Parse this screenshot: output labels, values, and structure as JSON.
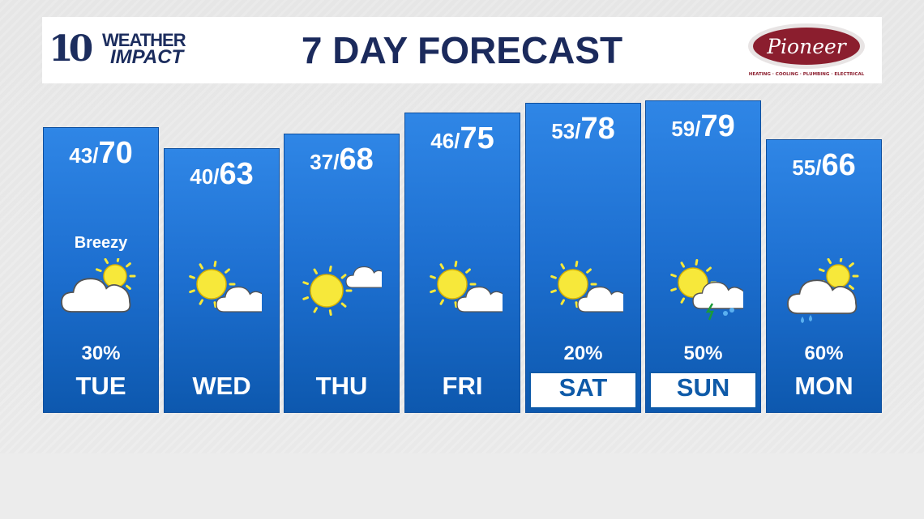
{
  "header": {
    "title": "7 DAY FORECAST",
    "station_logo": {
      "number": "10",
      "line1": "WEATHER",
      "line2": "IMPACT"
    },
    "sponsor": {
      "name": "Pioneer",
      "tagline": "HEATING · COOLING · PLUMBING · ELECTRICAL",
      "color": "#8b1e2e"
    }
  },
  "colors": {
    "column": "#1d6fd0",
    "title": "#1b2a5c",
    "sun": "#f7e83a"
  },
  "days": [
    {
      "day": "TUE",
      "low": "43",
      "high": "70",
      "note": "Breezy",
      "icon": "partly-cloudy-icon",
      "pop": "30%",
      "highlight": false
    },
    {
      "day": "WED",
      "low": "40",
      "high": "63",
      "note": "",
      "icon": "partly-sunny-icon",
      "pop": "",
      "highlight": false
    },
    {
      "day": "THU",
      "low": "37",
      "high": "68",
      "note": "",
      "icon": "mostly-sunny-icon",
      "pop": "",
      "highlight": false
    },
    {
      "day": "FRI",
      "low": "46",
      "high": "75",
      "note": "",
      "icon": "partly-sunny-icon",
      "pop": "",
      "highlight": false
    },
    {
      "day": "SAT",
      "low": "53",
      "high": "78",
      "note": "",
      "icon": "partly-sunny-icon",
      "pop": "20%",
      "highlight": true
    },
    {
      "day": "SUN",
      "low": "59",
      "high": "79",
      "note": "",
      "icon": "thunderstorm-icon",
      "pop": "50%",
      "highlight": true
    },
    {
      "day": "MON",
      "low": "55",
      "high": "66",
      "note": "",
      "icon": "rain-icon",
      "pop": "60%",
      "highlight": false
    }
  ]
}
